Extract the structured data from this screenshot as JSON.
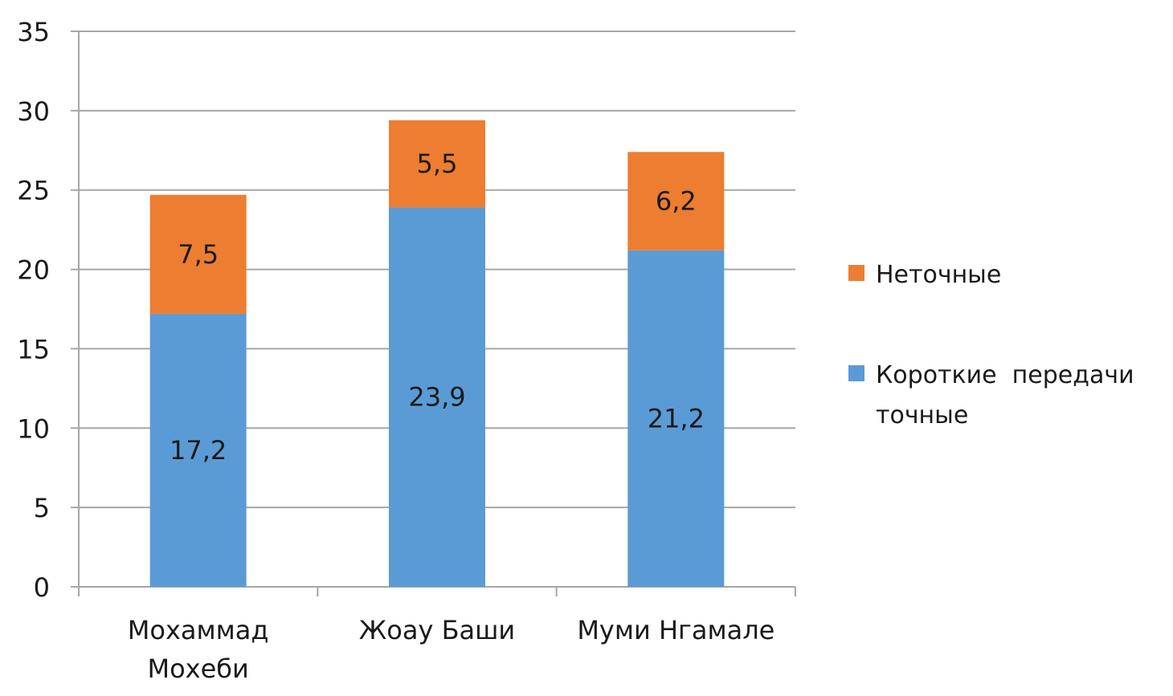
{
  "chart_data": {
    "type": "bar",
    "stacked": true,
    "categories": [
      [
        "Мохаммад",
        "Мохеби"
      ],
      [
        "Жоау Баши"
      ],
      [
        "Муми Нгамале"
      ]
    ],
    "series": [
      {
        "name": "Короткие передачи точные",
        "color": "#5B9BD5",
        "values": [
          17.2,
          23.9,
          21.2
        ],
        "labels": [
          "17,2",
          "23,9",
          "21,2"
        ]
      },
      {
        "name": "Неточные",
        "color": "#ED7D31",
        "values": [
          7.5,
          5.5,
          6.2
        ],
        "labels": [
          "7,5",
          "5,5",
          "6,2"
        ]
      }
    ],
    "legend_order": [
      1,
      0
    ],
    "legend_lines": [
      [
        "Неточные"
      ],
      [
        "Короткие  передачи",
        "точные"
      ]
    ],
    "yticks": [
      "0",
      "5",
      "10",
      "15",
      "20",
      "25",
      "30",
      "35"
    ],
    "ylim": [
      0,
      35
    ],
    "grid": true,
    "legend_position": "right",
    "gridline_color": "#a6a6a6",
    "axis_color": "#a6a6a6"
  }
}
